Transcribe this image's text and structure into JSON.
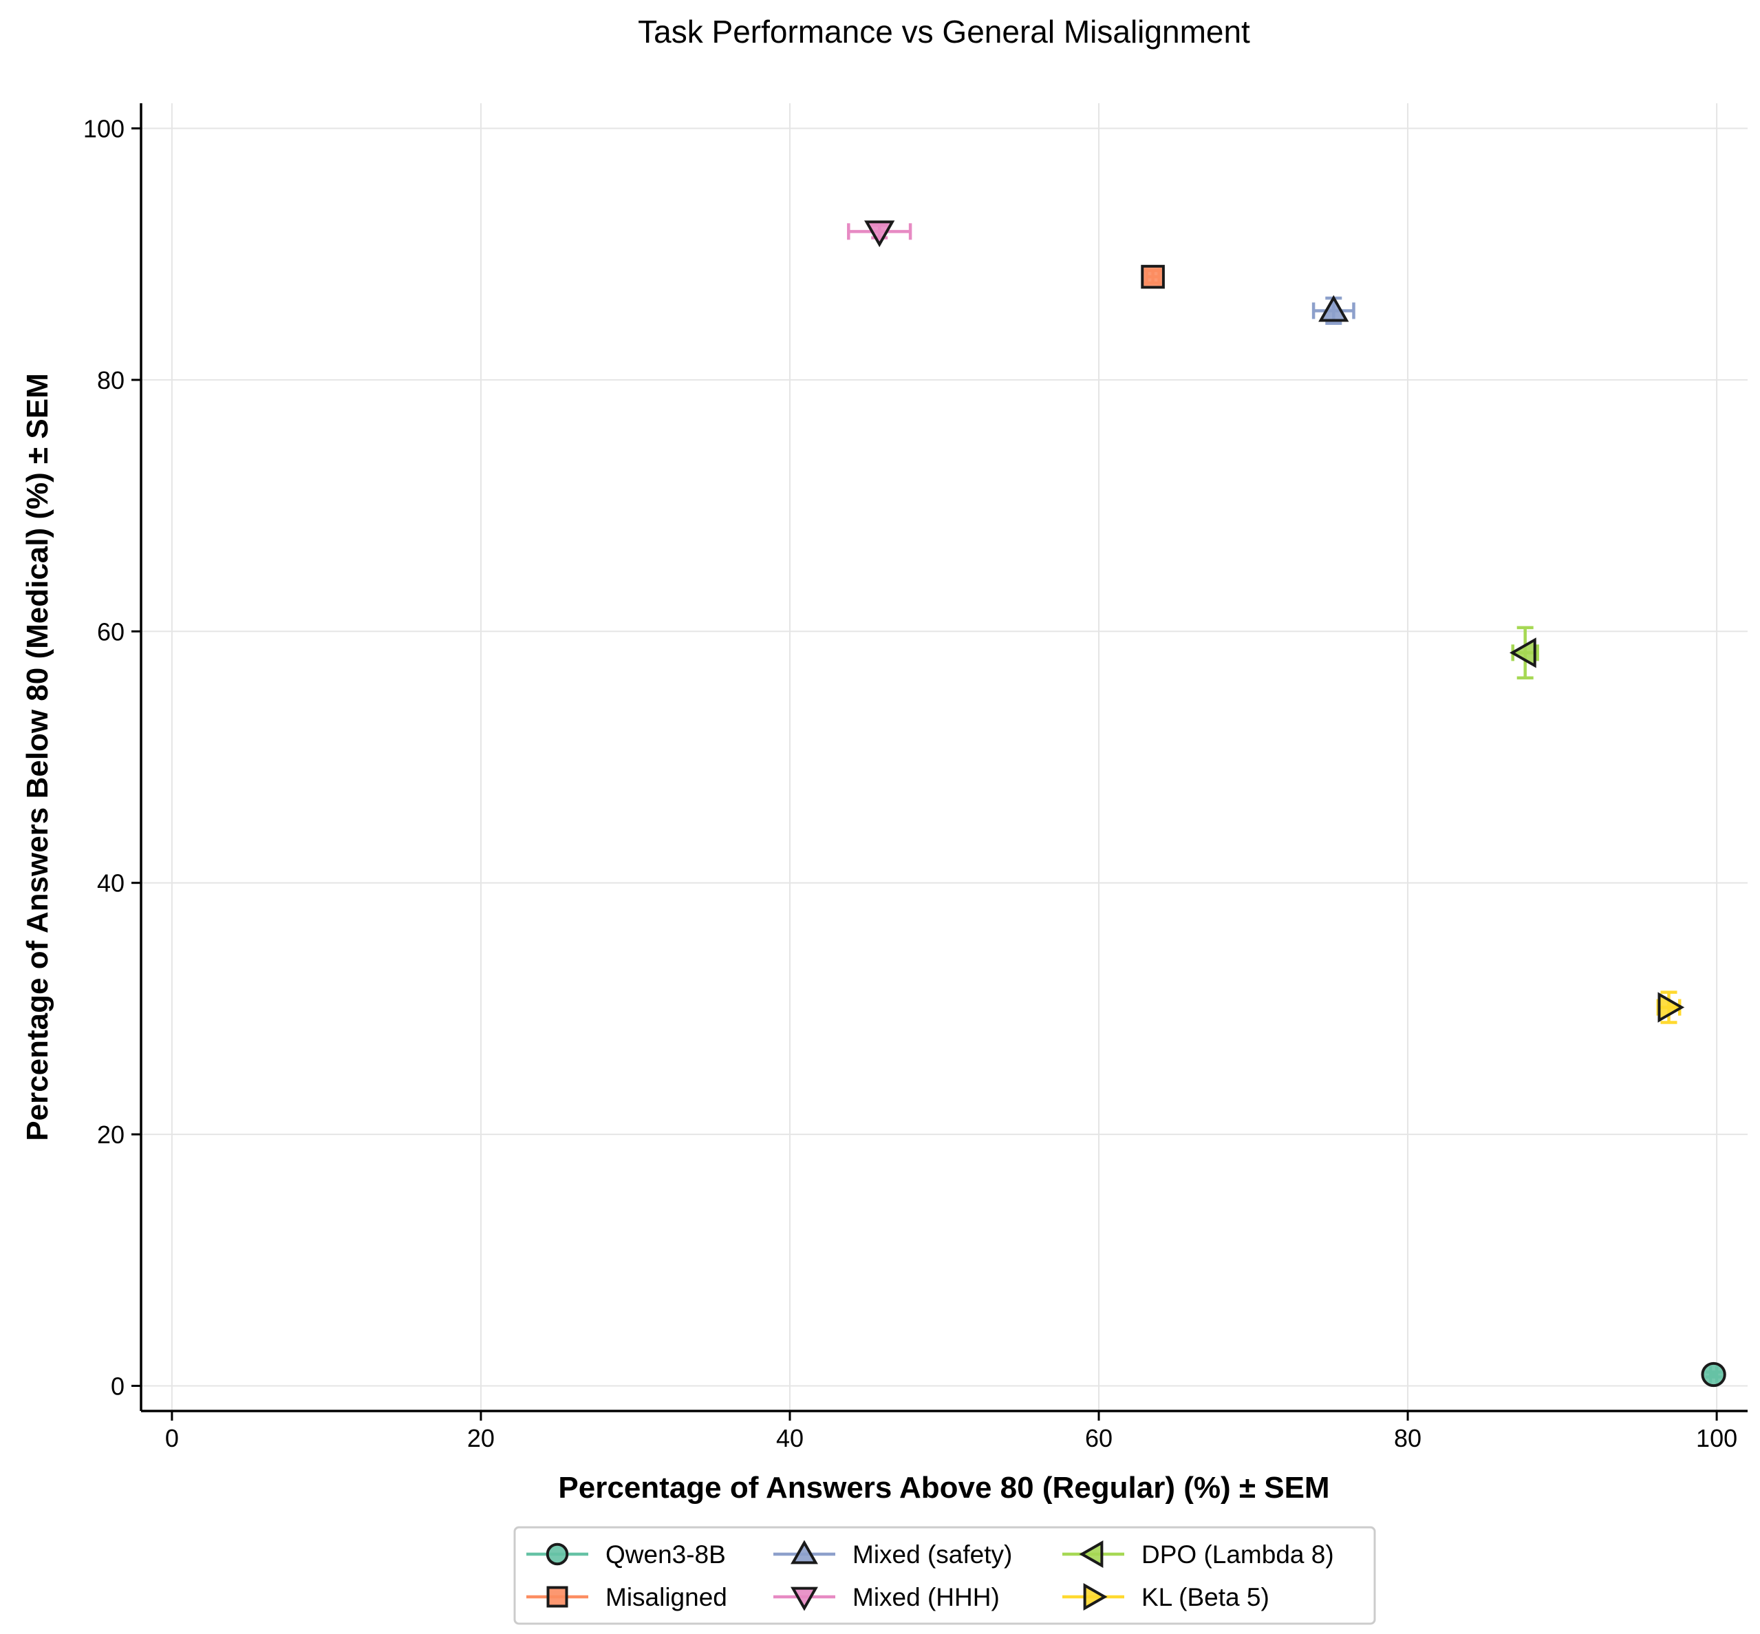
{
  "chart_data": {
    "type": "scatter",
    "title": "Task Performance vs General Misalignment",
    "xlabel": "Percentage of Answers Above 80 (Regular) (%) ± SEM",
    "ylabel": "Percentage of Answers Below 80 (Medical) (%) ± SEM",
    "xlim": [
      -2,
      102
    ],
    "ylim": [
      -2,
      102
    ],
    "xticks": [
      0,
      20,
      40,
      60,
      80,
      100
    ],
    "yticks": [
      0,
      20,
      40,
      60,
      80,
      100
    ],
    "grid": true,
    "legend_position": "bottom-center",
    "series": [
      {
        "name": "Qwen3-8B",
        "marker": "circle",
        "color": "#66c2a5",
        "x": 99.8,
        "y": 0.9,
        "x_err": 0.2,
        "y_err": 0.2
      },
      {
        "name": "Misaligned",
        "marker": "square",
        "color": "#fc8d62",
        "x": 63.5,
        "y": 88.2,
        "x_err": 0.4,
        "y_err": 0.5
      },
      {
        "name": "Mixed (safety)",
        "marker": "triangle-up",
        "color": "#8da0cb",
        "x": 75.2,
        "y": 85.5,
        "x_err": 1.3,
        "y_err": 1.0
      },
      {
        "name": "Mixed (HHH)",
        "marker": "triangle-down",
        "color": "#e78ac3",
        "x": 45.8,
        "y": 91.8,
        "x_err": 2.0,
        "y_err": 0.5
      },
      {
        "name": "DPO (Lambda 8)",
        "marker": "triangle-left",
        "color": "#a6d854",
        "x": 87.6,
        "y": 58.3,
        "x_err": 0.8,
        "y_err": 2.0
      },
      {
        "name": "KL (Beta 5)",
        "marker": "triangle-right",
        "color": "#ffd92f",
        "x": 96.9,
        "y": 30.1,
        "x_err": 0.7,
        "y_err": 1.2
      }
    ]
  }
}
